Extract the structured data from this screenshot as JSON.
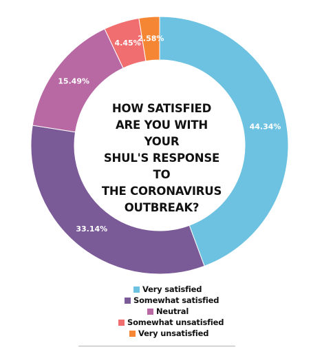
{
  "chart_data": {
    "type": "pie",
    "donut": true,
    "title": "HOW SATISFIED ARE YOU WITH YOUR SHUL'S RESPONSE TO THE CORONAVIRUS OUTBREAK?",
    "title_lines": [
      "HOW SATISFIED",
      "ARE YOU WITH YOUR",
      "SHUL'S RESPONSE TO",
      "THE CORONAVIRUS",
      "OUTBREAK?"
    ],
    "categories": [
      "Very satisfied",
      "Somewhat satisfied",
      "Neutral",
      "Somewhat unsatisfied",
      "Very unsatisfied"
    ],
    "values": [
      44.34,
      33.14,
      15.49,
      4.45,
      2.58
    ],
    "labels": [
      "44.34%",
      "33.14%",
      "15.49%",
      "4.45%",
      "2.58%"
    ],
    "colors": [
      "#6cc2e0",
      "#7b5a98",
      "#b868a2",
      "#f06d70",
      "#f58634"
    ],
    "legend_position": "bottom"
  }
}
